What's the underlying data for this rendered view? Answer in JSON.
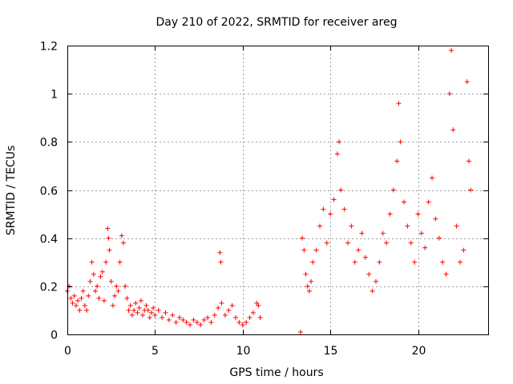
{
  "chart_data": {
    "type": "scatter",
    "title": "Day 210 of 2022, SRMTID for receiver areg",
    "xlabel": "GPS time / hours",
    "ylabel": "SRMTID / TECUs",
    "xlim": [
      0,
      24
    ],
    "ylim": [
      0,
      1.2
    ],
    "x_ticks": [
      0,
      5,
      10,
      15,
      20
    ],
    "x_tick_labels": [
      "0",
      "5",
      "10",
      "15",
      "20"
    ],
    "y_ticks": [
      0,
      0.2,
      0.4,
      0.6,
      0.8,
      1.0,
      1.2
    ],
    "y_tick_labels": [
      "0",
      "0.2",
      "0.4",
      "0.6",
      "0.8",
      "1",
      "1.2"
    ],
    "grid": true,
    "marker": "+",
    "color": "#ff0000",
    "series": [
      {
        "name": "SRMTID",
        "points": [
          [
            0.0,
            0.18
          ],
          [
            0.1,
            0.2
          ],
          [
            0.2,
            0.15
          ],
          [
            0.3,
            0.13
          ],
          [
            0.4,
            0.16
          ],
          [
            0.5,
            0.12
          ],
          [
            0.6,
            0.14
          ],
          [
            0.7,
            0.1
          ],
          [
            0.8,
            0.15
          ],
          [
            0.9,
            0.18
          ],
          [
            1.0,
            0.12
          ],
          [
            1.1,
            0.1
          ],
          [
            1.2,
            0.16
          ],
          [
            1.3,
            0.22
          ],
          [
            1.4,
            0.3
          ],
          [
            1.5,
            0.25
          ],
          [
            1.6,
            0.18
          ],
          [
            1.7,
            0.2
          ],
          [
            1.8,
            0.15
          ],
          [
            1.9,
            0.24
          ],
          [
            2.0,
            0.26
          ],
          [
            2.1,
            0.14
          ],
          [
            2.2,
            0.3
          ],
          [
            2.3,
            0.44
          ],
          [
            2.35,
            0.4
          ],
          [
            2.4,
            0.35
          ],
          [
            2.5,
            0.22
          ],
          [
            2.6,
            0.12
          ],
          [
            2.7,
            0.16
          ],
          [
            2.8,
            0.2
          ],
          [
            2.9,
            0.18
          ],
          [
            3.0,
            0.3
          ],
          [
            3.1,
            0.41
          ],
          [
            3.2,
            0.38
          ],
          [
            3.3,
            0.2
          ],
          [
            3.4,
            0.15
          ],
          [
            3.5,
            0.1
          ],
          [
            3.6,
            0.12
          ],
          [
            3.7,
            0.08
          ],
          [
            3.8,
            0.1
          ],
          [
            3.9,
            0.13
          ],
          [
            4.0,
            0.09
          ],
          [
            4.1,
            0.11
          ],
          [
            4.2,
            0.14
          ],
          [
            4.3,
            0.08
          ],
          [
            4.4,
            0.1
          ],
          [
            4.5,
            0.12
          ],
          [
            4.6,
            0.1
          ],
          [
            4.7,
            0.07
          ],
          [
            4.8,
            0.09
          ],
          [
            4.9,
            0.11
          ],
          [
            5.0,
            0.08
          ],
          [
            5.2,
            0.1
          ],
          [
            5.4,
            0.07
          ],
          [
            5.6,
            0.09
          ],
          [
            5.8,
            0.06
          ],
          [
            6.0,
            0.08
          ],
          [
            6.2,
            0.05
          ],
          [
            6.4,
            0.07
          ],
          [
            6.6,
            0.06
          ],
          [
            6.8,
            0.05
          ],
          [
            7.0,
            0.04
          ],
          [
            7.2,
            0.06
          ],
          [
            7.4,
            0.05
          ],
          [
            7.6,
            0.04
          ],
          [
            7.8,
            0.06
          ],
          [
            8.0,
            0.07
          ],
          [
            8.2,
            0.05
          ],
          [
            8.4,
            0.08
          ],
          [
            8.6,
            0.11
          ],
          [
            8.7,
            0.34
          ],
          [
            8.75,
            0.3
          ],
          [
            8.8,
            0.13
          ],
          [
            9.0,
            0.08
          ],
          [
            9.2,
            0.1
          ],
          [
            9.4,
            0.12
          ],
          [
            9.6,
            0.07
          ],
          [
            9.8,
            0.05
          ],
          [
            10.0,
            0.04
          ],
          [
            10.2,
            0.05
          ],
          [
            10.4,
            0.07
          ],
          [
            10.6,
            0.09
          ],
          [
            10.8,
            0.13
          ],
          [
            10.9,
            0.12
          ],
          [
            11.0,
            0.07
          ],
          [
            13.3,
            0.01
          ],
          [
            13.4,
            0.4
          ],
          [
            13.5,
            0.35
          ],
          [
            13.6,
            0.25
          ],
          [
            13.7,
            0.2
          ],
          [
            13.8,
            0.18
          ],
          [
            13.9,
            0.22
          ],
          [
            14.0,
            0.3
          ],
          [
            14.2,
            0.35
          ],
          [
            14.4,
            0.45
          ],
          [
            14.6,
            0.52
          ],
          [
            14.8,
            0.38
          ],
          [
            15.0,
            0.5
          ],
          [
            15.2,
            0.56
          ],
          [
            15.4,
            0.75
          ],
          [
            15.5,
            0.8
          ],
          [
            15.6,
            0.6
          ],
          [
            15.8,
            0.52
          ],
          [
            16.0,
            0.38
          ],
          [
            16.2,
            0.45
          ],
          [
            16.4,
            0.3
          ],
          [
            16.6,
            0.35
          ],
          [
            16.8,
            0.42
          ],
          [
            17.0,
            0.32
          ],
          [
            17.2,
            0.25
          ],
          [
            17.4,
            0.18
          ],
          [
            17.6,
            0.22
          ],
          [
            17.8,
            0.3
          ],
          [
            18.0,
            0.42
          ],
          [
            18.2,
            0.38
          ],
          [
            18.4,
            0.5
          ],
          [
            18.6,
            0.6
          ],
          [
            18.8,
            0.72
          ],
          [
            18.9,
            0.96
          ],
          [
            19.0,
            0.8
          ],
          [
            19.2,
            0.55
          ],
          [
            19.4,
            0.45
          ],
          [
            19.6,
            0.38
          ],
          [
            19.8,
            0.3
          ],
          [
            20.0,
            0.5
          ],
          [
            20.2,
            0.42
          ],
          [
            20.4,
            0.36
          ],
          [
            20.6,
            0.55
          ],
          [
            20.8,
            0.65
          ],
          [
            21.0,
            0.48
          ],
          [
            21.2,
            0.4
          ],
          [
            21.4,
            0.3
          ],
          [
            21.6,
            0.25
          ],
          [
            21.8,
            1.0
          ],
          [
            21.9,
            1.18
          ],
          [
            22.0,
            0.85
          ],
          [
            22.2,
            0.45
          ],
          [
            22.4,
            0.3
          ],
          [
            22.6,
            0.35
          ],
          [
            22.8,
            1.05
          ],
          [
            22.9,
            0.72
          ],
          [
            23.0,
            0.6
          ]
        ]
      }
    ]
  }
}
